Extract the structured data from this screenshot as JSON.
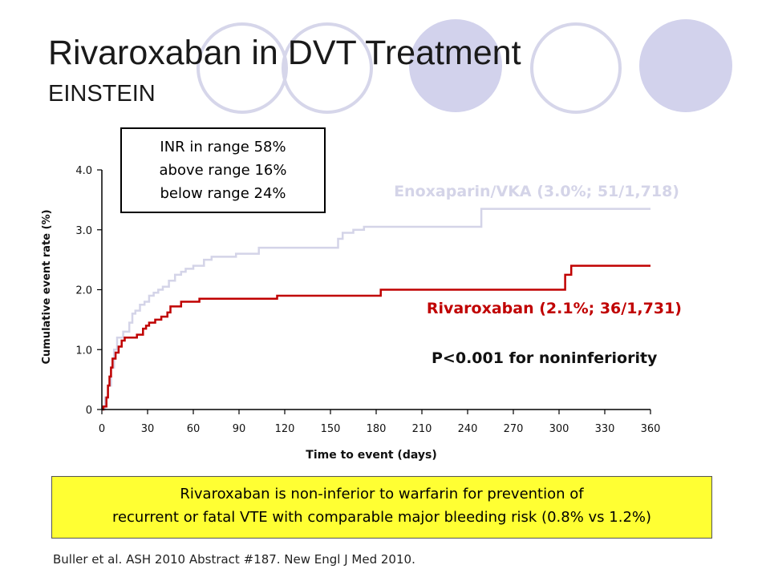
{
  "title": "Rivaroxaban in DVT Treatment",
  "subtitle": "EINSTEIN",
  "inr_box": {
    "line1": "INR in range 58%",
    "line2": "above range 16%",
    "line3": "below range 24%"
  },
  "summary": {
    "line1": "Rivaroxaban is non-inferior to warfarin for prevention of",
    "line2": "recurrent or fatal VTE with comparable major bleeding risk (0.8% vs 1.2%)"
  },
  "citation": "Buller et al. ASH 2010 Abstract #187. New Engl J Med 2010.",
  "chart_data": {
    "type": "line",
    "xlabel": "Time to event (days)",
    "ylabel": "Cumulative event rate (%)",
    "xlim": [
      0,
      360
    ],
    "ylim": [
      0,
      4.0
    ],
    "x_ticks": [
      "0",
      "30",
      "60",
      "90",
      "120",
      "150",
      "180",
      "210",
      "240",
      "270",
      "300",
      "330",
      "360"
    ],
    "y_ticks": [
      "0",
      "1.0",
      "2.0",
      "3.0",
      "4.0"
    ],
    "annotation": "P<0.001 for noninferiority",
    "series": [
      {
        "name": "Enoxaparin/VKA (3.0%; 51/1,718)",
        "color": "#d4d4e8",
        "step": true,
        "points": [
          [
            0,
            0
          ],
          [
            2,
            0.2
          ],
          [
            4,
            0.4
          ],
          [
            6,
            0.7
          ],
          [
            8,
            1.0
          ],
          [
            10,
            1.2
          ],
          [
            14,
            1.3
          ],
          [
            18,
            1.45
          ],
          [
            20,
            1.6
          ],
          [
            22,
            1.65
          ],
          [
            25,
            1.75
          ],
          [
            28,
            1.8
          ],
          [
            31,
            1.9
          ],
          [
            34,
            1.95
          ],
          [
            37,
            2.0
          ],
          [
            40,
            2.05
          ],
          [
            44,
            2.15
          ],
          [
            48,
            2.25
          ],
          [
            52,
            2.3
          ],
          [
            55,
            2.35
          ],
          [
            60,
            2.4
          ],
          [
            67,
            2.5
          ],
          [
            72,
            2.55
          ],
          [
            88,
            2.6
          ],
          [
            103,
            2.7
          ],
          [
            120,
            2.7
          ],
          [
            155,
            2.85
          ],
          [
            158,
            2.95
          ],
          [
            165,
            3.0
          ],
          [
            172,
            3.05
          ],
          [
            180,
            3.05
          ],
          [
            249,
            3.35
          ],
          [
            360,
            3.35
          ]
        ]
      },
      {
        "name": "Rivaroxaban (2.1%; 36/1,731)",
        "color": "#c00000",
        "step": true,
        "points": [
          [
            0,
            0
          ],
          [
            1,
            0.05
          ],
          [
            3,
            0.2
          ],
          [
            4,
            0.4
          ],
          [
            5,
            0.55
          ],
          [
            6,
            0.7
          ],
          [
            7,
            0.85
          ],
          [
            9,
            0.95
          ],
          [
            11,
            1.05
          ],
          [
            13,
            1.15
          ],
          [
            15,
            1.2
          ],
          [
            23,
            1.25
          ],
          [
            27,
            1.35
          ],
          [
            29,
            1.4
          ],
          [
            31,
            1.45
          ],
          [
            35,
            1.5
          ],
          [
            39,
            1.55
          ],
          [
            43,
            1.62
          ],
          [
            45,
            1.72
          ],
          [
            52,
            1.8
          ],
          [
            64,
            1.85
          ],
          [
            115,
            1.9
          ],
          [
            183,
            2.0
          ],
          [
            304,
            2.25
          ],
          [
            308,
            2.4
          ],
          [
            360,
            2.4
          ]
        ]
      }
    ]
  }
}
